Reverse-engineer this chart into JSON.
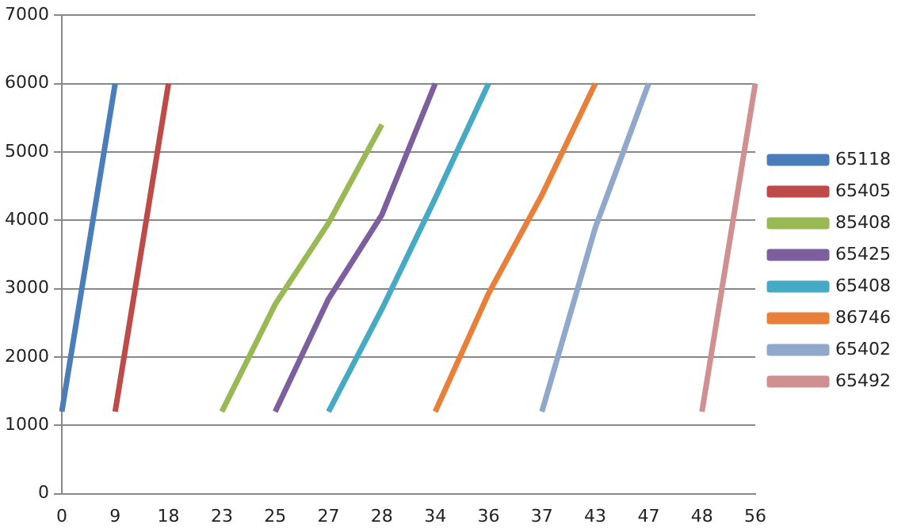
{
  "chart_data": {
    "type": "line",
    "categories": [
      "0",
      "9",
      "18",
      "23",
      "25",
      "27",
      "28",
      "34",
      "36",
      "37",
      "43",
      "47",
      "48",
      "56"
    ],
    "ylim": [
      0,
      7000
    ],
    "yticks": [
      0,
      1000,
      2000,
      3000,
      4000,
      5000,
      6000,
      7000
    ],
    "grid": "y",
    "legend": "right",
    "marker": "none",
    "line_style": "solid",
    "series": [
      {
        "name": "65118",
        "color": "#4a7ebb",
        "values": [
          1200,
          6000,
          null,
          null,
          null,
          null,
          null,
          null,
          null,
          null,
          null,
          null,
          null,
          null
        ]
      },
      {
        "name": "65405",
        "color": "#be4b48",
        "values": [
          null,
          1200,
          6000,
          null,
          null,
          null,
          null,
          null,
          null,
          null,
          null,
          null,
          null,
          null
        ]
      },
      {
        "name": "85408",
        "color": "#98b954",
        "values": [
          null,
          null,
          null,
          1200,
          2770,
          3960,
          5400,
          null,
          null,
          null,
          null,
          null,
          null,
          null
        ]
      },
      {
        "name": "65425",
        "color": "#7d5fa0",
        "values": [
          null,
          null,
          null,
          null,
          1200,
          2850,
          4080,
          6000,
          null,
          null,
          null,
          null,
          null,
          null
        ]
      },
      {
        "name": "65408",
        "color": "#46aac5",
        "values": [
          null,
          null,
          null,
          null,
          null,
          1200,
          2700,
          4320,
          6000,
          null,
          null,
          null,
          null,
          null
        ]
      },
      {
        "name": "86746",
        "color": "#e8803a",
        "values": [
          null,
          null,
          null,
          null,
          null,
          null,
          null,
          1200,
          2930,
          4370,
          6000,
          null,
          null,
          null
        ]
      },
      {
        "name": "65402",
        "color": "#8fa8cc",
        "values": [
          null,
          null,
          null,
          null,
          null,
          null,
          null,
          null,
          null,
          1200,
          3890,
          6000,
          null,
          null
        ]
      },
      {
        "name": "65492",
        "color": "#d09090",
        "values": [
          null,
          null,
          null,
          null,
          null,
          null,
          null,
          null,
          null,
          null,
          null,
          null,
          1200,
          6000
        ]
      }
    ]
  }
}
